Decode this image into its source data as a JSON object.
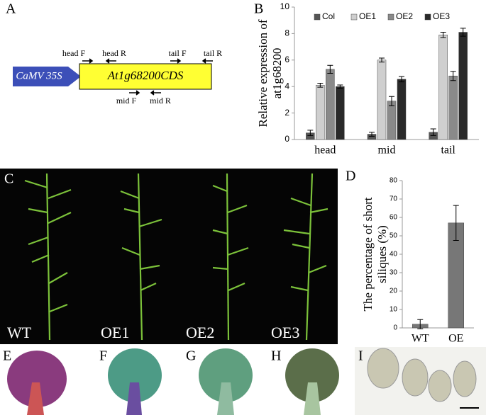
{
  "panel_labels": [
    "A",
    "B",
    "C",
    "D",
    "E",
    "F",
    "G",
    "H",
    "I"
  ],
  "diagram": {
    "promoter": "CaMV 35S",
    "gene": "At1g68200CDS",
    "primers": [
      "head F",
      "head R",
      "tail F",
      "tail R",
      "mid F",
      "mid R"
    ]
  },
  "plants": [
    "WT",
    "OE1",
    "OE2",
    "OE3"
  ],
  "chart_data": [
    {
      "type": "bar",
      "ylabel": [
        "Relative expression of",
        "at1g68200"
      ],
      "categories": [
        "head",
        "mid",
        "tail"
      ],
      "series": [
        {
          "name": "Col",
          "color": "#555555",
          "values": [
            0.5,
            0.4,
            0.55
          ],
          "errors": [
            0.2,
            0.15,
            0.25
          ]
        },
        {
          "name": "OE1",
          "color": "#cfcfcf",
          "values": [
            4.1,
            6.0,
            7.9
          ],
          "errors": [
            0.15,
            0.15,
            0.2
          ]
        },
        {
          "name": "OE2",
          "color": "#8a8a8a",
          "values": [
            5.3,
            2.9,
            4.8
          ],
          "errors": [
            0.3,
            0.35,
            0.35
          ]
        },
        {
          "name": "OE3",
          "color": "#2a2a2a",
          "values": [
            4.0,
            4.55,
            8.1
          ],
          "errors": [
            0.12,
            0.2,
            0.3
          ]
        }
      ],
      "ylim": [
        0,
        10
      ],
      "yticks": [
        0,
        2,
        4,
        6,
        8,
        10
      ]
    },
    {
      "type": "bar",
      "ylabel": [
        "The percentage of short",
        "siliques (%)"
      ],
      "categories": [
        "WT",
        "OE"
      ],
      "series": [
        {
          "color": "#777777",
          "values": [
            2,
            57
          ],
          "errors": [
            2.5,
            9.5
          ]
        }
      ],
      "ylim": [
        0,
        80
      ],
      "yticks": [
        0,
        10,
        20,
        30,
        40,
        50,
        60,
        70,
        80
      ]
    }
  ]
}
